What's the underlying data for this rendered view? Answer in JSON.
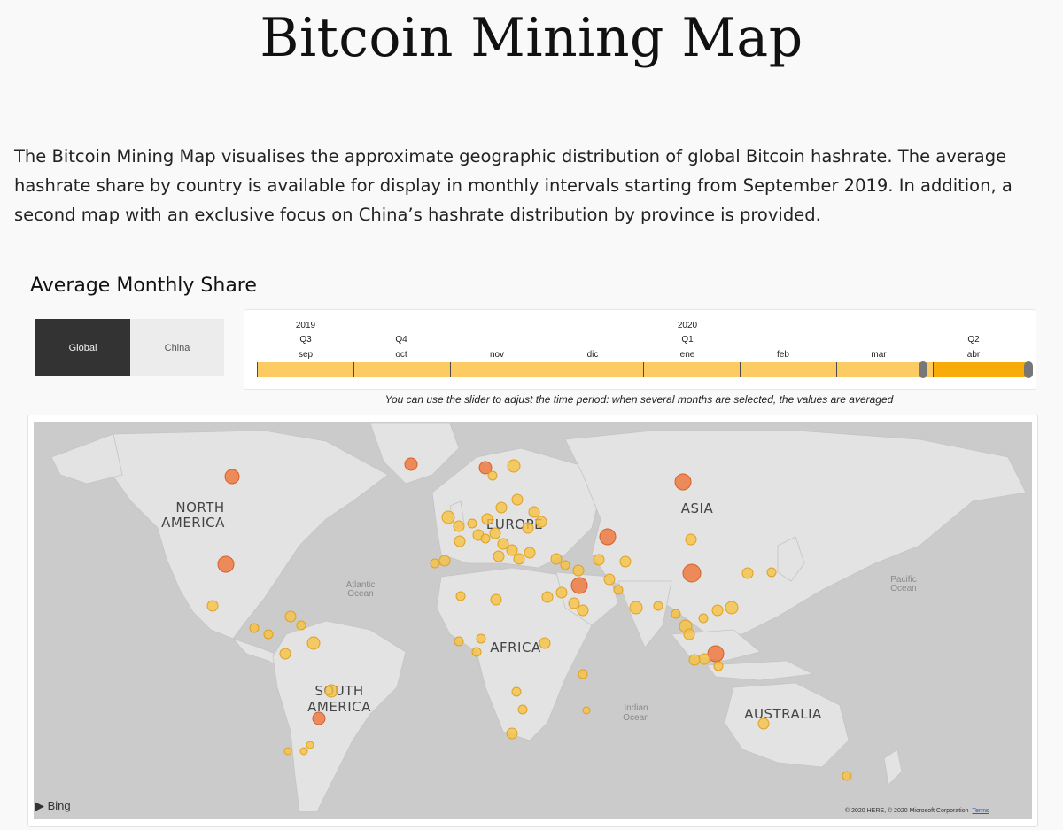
{
  "page": {
    "title": "Bitcoin Mining Map",
    "intro": "The Bitcoin Mining Map visualises the approximate geographic distribution of global Bitcoin hashrate. The average hashrate share by country is available for display in monthly intervals starting from September 2019. In addition, a second map with an exclusive focus on China’s hashrate distribution by province is provided.",
    "subtitle": "Average Monthly Share"
  },
  "toggle": {
    "global": "Global",
    "china": "China",
    "selected": "Global"
  },
  "timeline": {
    "years": [
      "2019",
      "2020"
    ],
    "quarters": [
      "Q3",
      "Q4",
      "Q1",
      "Q2"
    ],
    "months": [
      "sep",
      "oct",
      "nov",
      "dic",
      "ene",
      "feb",
      "mar",
      "abr"
    ],
    "selected_month": "abr"
  },
  "note": "You can use the slider to adjust the time period: when several months are selected, the values are averaged",
  "map": {
    "continents": [
      "NORTH",
      "AMERICA",
      "SOUTH",
      "AMERICA",
      "EUROPE",
      "ASIA",
      "AFRICA",
      "AUSTRALIA"
    ],
    "oceans": [
      "Atlantic",
      "Ocean",
      "Pacific",
      "Ocean",
      "Indian",
      "Ocean"
    ],
    "attribution": "Bing",
    "copyright": "© 2020 HERE, © 2020 Microsoft Corporation",
    "terms": "Terms",
    "colors": {
      "land": "#e3e3e3",
      "water": "#cbcbcb",
      "small": "#f6c244",
      "large": "#ef7a41"
    }
  }
}
